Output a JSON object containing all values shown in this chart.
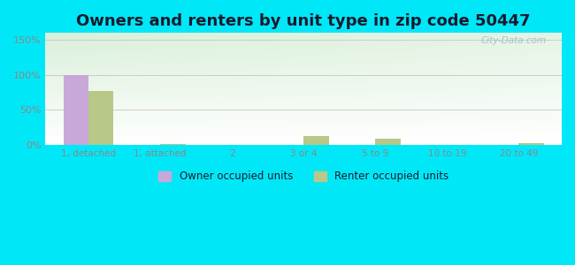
{
  "title": "Owners and renters by unit type in zip code 50447",
  "categories": [
    "1, detached",
    "1, attached",
    "2",
    "3 or 4",
    "5 to 9",
    "10 to 19",
    "20 to 49"
  ],
  "owner_values": [
    100,
    0,
    0,
    0,
    0,
    0,
    0
  ],
  "renter_values": [
    77,
    1,
    0,
    13,
    9,
    0,
    2
  ],
  "owner_color": "#c8a8d8",
  "renter_color": "#b8c888",
  "ylim": [
    0,
    160
  ],
  "yticks": [
    0,
    50,
    100,
    150
  ],
  "ytick_labels": [
    "0%",
    "50%",
    "100%",
    "150%"
  ],
  "bar_width": 0.35,
  "background_color": "#00e8f8",
  "watermark": "City-Data.com",
  "legend_owner": "Owner occupied units",
  "legend_renter": "Renter occupied units",
  "title_fontsize": 13,
  "grid_color": "#cccccc",
  "tick_color": "#888888",
  "title_color": "#1a1a2e"
}
